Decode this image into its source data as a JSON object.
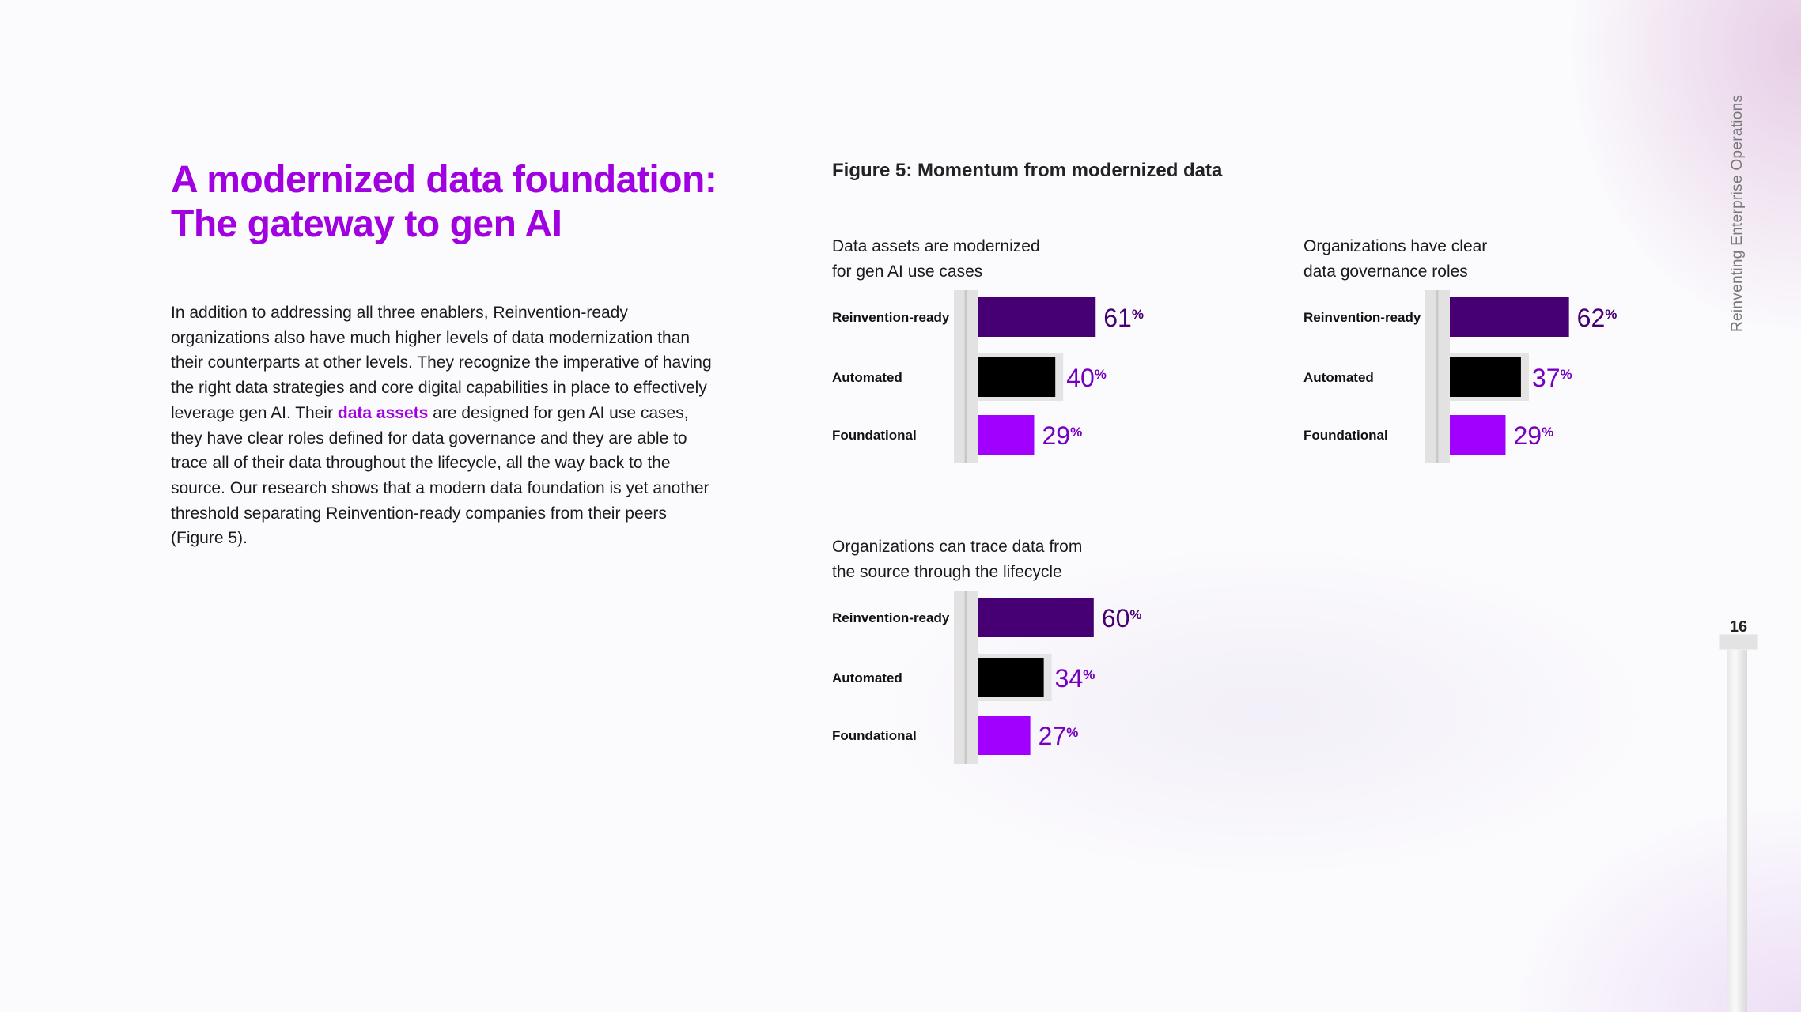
{
  "headline": {
    "line1": "A modernized data foundation:",
    "line2": "The gateway to gen AI"
  },
  "body": {
    "before": "In addition to addressing all three enablers, Reinvention-ready organizations also have much higher levels of data modernization than their counterparts at other levels. They recognize the imperative of having the right data strategies and core digital capabilities in place to effectively leverage gen AI. Their ",
    "link": "data assets",
    "after": " are designed for gen AI use cases, they have clear roles defined for data governance and they are able to trace all of their data throughout the lifecycle, all the way back to the source. Our research shows that a modern data foundation is yet another threshold separating Reinvention-ready companies from their peers (Figure 5)."
  },
  "figure_title": "Figure 5: Momentum from modernized data",
  "side_label": "Reinventing Enterprise Operations",
  "page_number": "16",
  "colors": {
    "accent": "#a100e0",
    "reinvention_ready": "#460073",
    "automated": "#000000",
    "foundational": "#a100ff",
    "value_reinvention": "#460073",
    "value_other": "#7500c0"
  },
  "chart_data": [
    {
      "type": "bar",
      "orientation": "horizontal",
      "title_lines": [
        "Data assets are modernized",
        "for gen AI use cases"
      ],
      "categories": [
        "Reinvention-ready",
        "Automated",
        "Foundational"
      ],
      "values": [
        61,
        40,
        29
      ],
      "unit": "%"
    },
    {
      "type": "bar",
      "orientation": "horizontal",
      "title_lines": [
        "Organizations have clear",
        "data governance roles"
      ],
      "categories": [
        "Reinvention-ready",
        "Automated",
        "Foundational"
      ],
      "values": [
        62,
        37,
        29
      ],
      "unit": "%"
    },
    {
      "type": "bar",
      "orientation": "horizontal",
      "title_lines": [
        "Organizations can trace data from",
        "the source through the lifecycle"
      ],
      "categories": [
        "Reinvention-ready",
        "Automated",
        "Foundational"
      ],
      "values": [
        60,
        34,
        27
      ],
      "unit": "%"
    }
  ]
}
